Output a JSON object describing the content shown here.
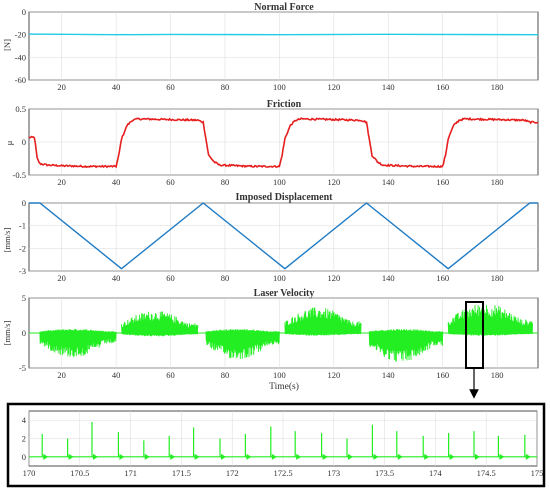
{
  "chart_data": [
    {
      "type": "line",
      "title": "Normal Force",
      "xlabel": "",
      "ylabel": "[N]",
      "xlim": [
        8,
        195
      ],
      "ylim": [
        -60,
        0
      ],
      "xticks": [
        20,
        40,
        60,
        80,
        100,
        120,
        140,
        160,
        180
      ],
      "yticks": [
        0,
        -20,
        -40,
        -60
      ],
      "grid": true,
      "color": "#22cce6",
      "series": [
        {
          "x": [
            8,
            40,
            60,
            100,
            140,
            195
          ],
          "y": [
            -19.5,
            -20,
            -19.8,
            -20,
            -19.7,
            -20
          ]
        }
      ]
    },
    {
      "type": "line",
      "title": "Friction",
      "xlabel": "",
      "ylabel": "μ",
      "xlim": [
        8,
        195
      ],
      "ylim": [
        -0.5,
        0.5
      ],
      "xticks": [
        20,
        40,
        60,
        80,
        100,
        120,
        140,
        160,
        180
      ],
      "yticks": [
        0.5,
        0,
        -0.5
      ],
      "grid": true,
      "color": "#e61e1e",
      "series": [
        {
          "x": [
            8,
            10,
            11,
            12,
            15,
            20,
            30,
            40,
            41,
            42,
            44,
            46,
            48,
            60,
            70,
            72,
            73,
            74,
            76,
            78,
            90,
            100,
            101,
            102,
            104,
            106,
            108,
            120,
            130,
            132,
            133,
            134,
            136,
            138,
            150,
            160,
            161,
            162,
            164,
            166,
            168,
            180,
            190,
            192,
            195
          ],
          "y": [
            0.07,
            0.07,
            -0.25,
            -0.33,
            -0.35,
            -0.36,
            -0.37,
            -0.37,
            -0.2,
            0.05,
            0.25,
            0.33,
            0.35,
            0.34,
            0.33,
            0.3,
            0.05,
            -0.2,
            -0.3,
            -0.35,
            -0.37,
            -0.37,
            -0.2,
            0.05,
            0.25,
            0.33,
            0.35,
            0.34,
            0.33,
            0.3,
            0.05,
            -0.2,
            -0.3,
            -0.35,
            -0.37,
            -0.37,
            -0.2,
            0.05,
            0.25,
            0.33,
            0.35,
            0.34,
            0.33,
            0.3,
            0.3
          ]
        }
      ]
    },
    {
      "type": "line",
      "title": "Imposed Displacement",
      "xlabel": "",
      "ylabel": "[mm/s]",
      "xlim": [
        8,
        195
      ],
      "ylim": [
        -3,
        0
      ],
      "xticks": [
        20,
        40,
        60,
        80,
        100,
        120,
        140,
        160,
        180
      ],
      "yticks": [
        0,
        -1,
        -2,
        -3
      ],
      "grid": true,
      "color": "#1f7bc4",
      "series": [
        {
          "x": [
            8,
            12,
            42,
            72,
            102,
            132,
            162,
            192,
            195
          ],
          "y": [
            0,
            0,
            -2.9,
            0,
            -2.9,
            0,
            -2.9,
            0,
            0
          ]
        }
      ]
    },
    {
      "type": "area",
      "title": "Laser Velocity",
      "xlabel": "Time(s)",
      "ylabel": "[mm/s]",
      "xlim": [
        8,
        195
      ],
      "ylim": [
        -5,
        5
      ],
      "xticks": [
        20,
        40,
        60,
        80,
        100,
        120,
        140,
        160,
        180
      ],
      "yticks": [
        5,
        0,
        -5
      ],
      "grid": true,
      "color": "#22ee22",
      "series": [
        {
          "segments": [
            {
              "x": [
                12,
                40
              ],
              "top": 0.6,
              "bottom": -3.5
            },
            {
              "x": [
                42,
                70
              ],
              "top": 3.2,
              "bottom": -0.5
            },
            {
              "x": [
                73,
                100
              ],
              "top": 0.6,
              "bottom": -3.8
            },
            {
              "x": [
                102,
                130
              ],
              "top": 3.7,
              "bottom": -0.4
            },
            {
              "x": [
                133,
                160
              ],
              "top": 0.6,
              "bottom": -4.2
            },
            {
              "x": [
                162,
                193
              ],
              "top": 4.3,
              "bottom": -0.4
            }
          ]
        }
      ]
    },
    {
      "type": "line",
      "title": "",
      "xlabel": "",
      "ylabel": "",
      "xlim": [
        170,
        175
      ],
      "ylim": [
        -1,
        5
      ],
      "xticks": [
        170,
        170.5,
        171,
        171.5,
        172,
        172.5,
        173,
        173.5,
        174,
        174.5,
        175
      ],
      "yticks": [
        4,
        2,
        0
      ],
      "grid": true,
      "color": "#22ee22",
      "series": [
        {
          "spike_x": [
            170.13,
            170.38,
            170.62,
            170.88,
            171.13,
            171.38,
            171.62,
            171.88,
            172.13,
            172.38,
            172.62,
            172.88,
            173.13,
            173.38,
            173.62,
            173.88,
            174.13,
            174.38,
            174.62,
            174.88
          ],
          "spike_y": [
            2.5,
            2.0,
            3.8,
            2.7,
            1.8,
            2.3,
            3.2,
            2.0,
            2.5,
            3.3,
            2.8,
            2.6,
            2.0,
            3.5,
            2.8,
            2.3,
            2.6,
            2.8,
            2.3,
            2.4
          ]
        }
      ]
    }
  ]
}
